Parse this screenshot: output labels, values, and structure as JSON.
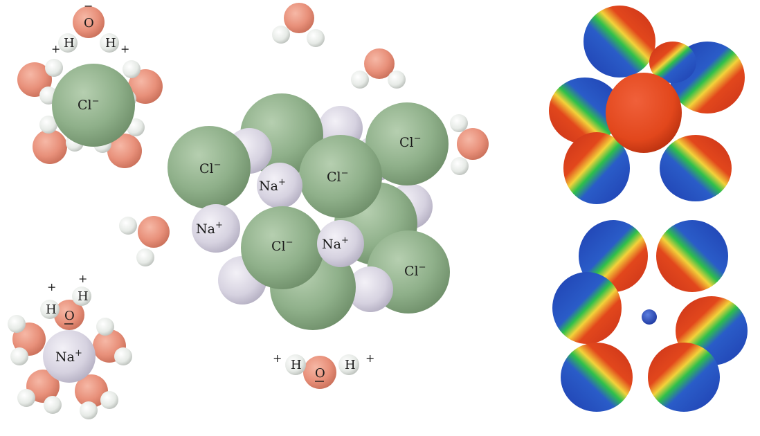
{
  "labels": {
    "chloride": "Cl",
    "sodium": "Na",
    "oxygen": "O",
    "hydrogen": "H",
    "minus": "−",
    "plus": "+"
  },
  "colors": {
    "chloride": "#8fb08a",
    "sodium": "#d9d6e2",
    "oxygen": "#e8907a",
    "hydrogen": "#e8ece8",
    "potential_positive": "#1f3fb0",
    "potential_neutral": "#2fc04a",
    "potential_negative": "#e2471c"
  }
}
